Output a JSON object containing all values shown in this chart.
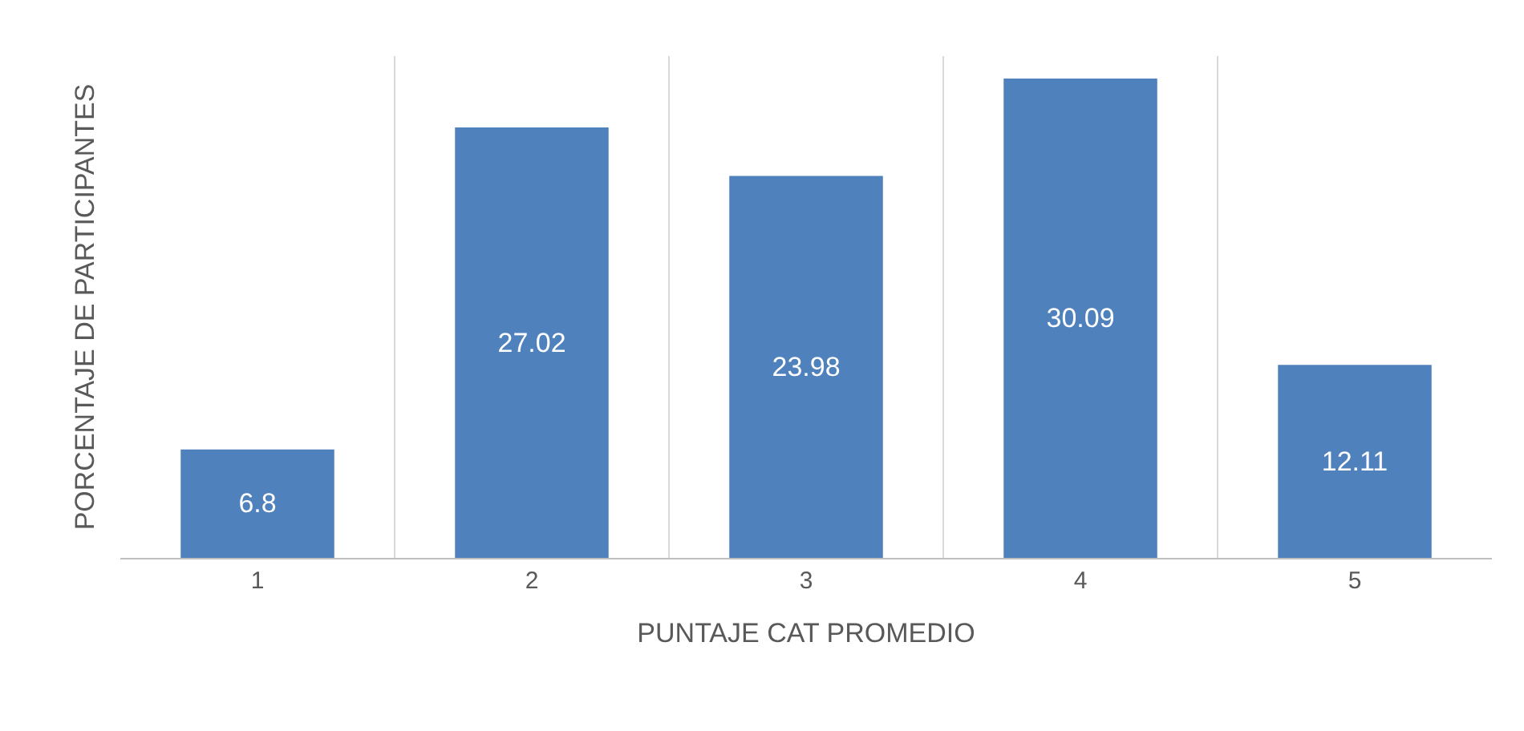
{
  "chart_data": {
    "type": "bar",
    "xlabel": "PUNTAJE CAT PROMEDIO",
    "ylabel": "PORCENTAJE DE PARTICIPANTES",
    "categories": [
      "1",
      "2",
      "3",
      "4",
      "5"
    ],
    "values": [
      6.8,
      27.02,
      23.98,
      30.09,
      12.11
    ],
    "color": "#4f81bd",
    "data_labels": true,
    "ylim": [
      0,
      31.5
    ],
    "grid": "x",
    "tick_labels": "x"
  }
}
